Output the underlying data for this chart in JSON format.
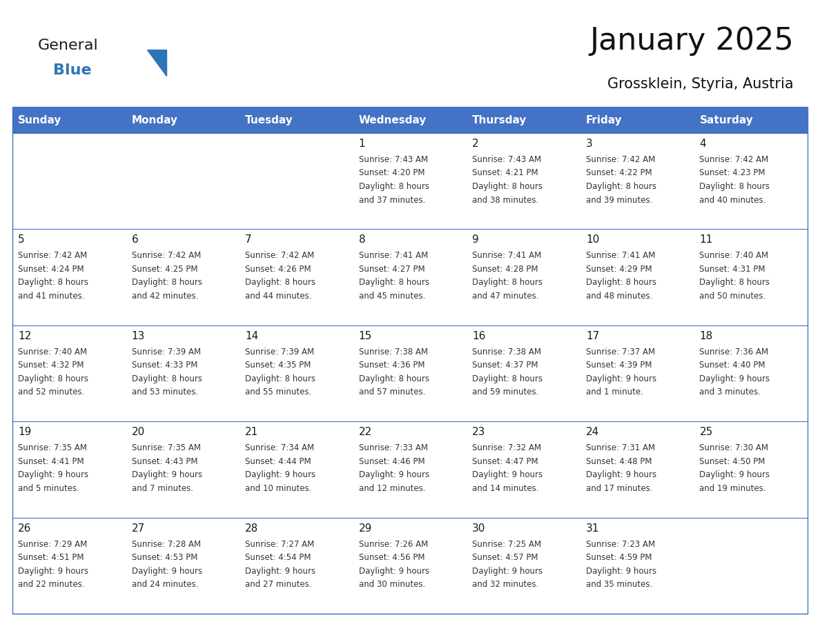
{
  "title": "January 2025",
  "subtitle": "Grossklein, Styria, Austria",
  "header_color": "#4472C4",
  "header_text_color": "#FFFFFF",
  "border_color": "#4472C4",
  "cell_line_color": "#4472C4",
  "text_color": "#333333",
  "day_number_color": "#1a1a1a",
  "logo_general_color": "#1a1a1a",
  "logo_blue_color": "#2E75B6",
  "logo_triangle_color": "#2E75B6",
  "days_of_week": [
    "Sunday",
    "Monday",
    "Tuesday",
    "Wednesday",
    "Thursday",
    "Friday",
    "Saturday"
  ],
  "weeks": [
    [
      {
        "day": "",
        "info": ""
      },
      {
        "day": "",
        "info": ""
      },
      {
        "day": "",
        "info": ""
      },
      {
        "day": "1",
        "info": "Sunrise: 7:43 AM\nSunset: 4:20 PM\nDaylight: 8 hours\nand 37 minutes."
      },
      {
        "day": "2",
        "info": "Sunrise: 7:43 AM\nSunset: 4:21 PM\nDaylight: 8 hours\nand 38 minutes."
      },
      {
        "day": "3",
        "info": "Sunrise: 7:42 AM\nSunset: 4:22 PM\nDaylight: 8 hours\nand 39 minutes."
      },
      {
        "day": "4",
        "info": "Sunrise: 7:42 AM\nSunset: 4:23 PM\nDaylight: 8 hours\nand 40 minutes."
      }
    ],
    [
      {
        "day": "5",
        "info": "Sunrise: 7:42 AM\nSunset: 4:24 PM\nDaylight: 8 hours\nand 41 minutes."
      },
      {
        "day": "6",
        "info": "Sunrise: 7:42 AM\nSunset: 4:25 PM\nDaylight: 8 hours\nand 42 minutes."
      },
      {
        "day": "7",
        "info": "Sunrise: 7:42 AM\nSunset: 4:26 PM\nDaylight: 8 hours\nand 44 minutes."
      },
      {
        "day": "8",
        "info": "Sunrise: 7:41 AM\nSunset: 4:27 PM\nDaylight: 8 hours\nand 45 minutes."
      },
      {
        "day": "9",
        "info": "Sunrise: 7:41 AM\nSunset: 4:28 PM\nDaylight: 8 hours\nand 47 minutes."
      },
      {
        "day": "10",
        "info": "Sunrise: 7:41 AM\nSunset: 4:29 PM\nDaylight: 8 hours\nand 48 minutes."
      },
      {
        "day": "11",
        "info": "Sunrise: 7:40 AM\nSunset: 4:31 PM\nDaylight: 8 hours\nand 50 minutes."
      }
    ],
    [
      {
        "day": "12",
        "info": "Sunrise: 7:40 AM\nSunset: 4:32 PM\nDaylight: 8 hours\nand 52 minutes."
      },
      {
        "day": "13",
        "info": "Sunrise: 7:39 AM\nSunset: 4:33 PM\nDaylight: 8 hours\nand 53 minutes."
      },
      {
        "day": "14",
        "info": "Sunrise: 7:39 AM\nSunset: 4:35 PM\nDaylight: 8 hours\nand 55 minutes."
      },
      {
        "day": "15",
        "info": "Sunrise: 7:38 AM\nSunset: 4:36 PM\nDaylight: 8 hours\nand 57 minutes."
      },
      {
        "day": "16",
        "info": "Sunrise: 7:38 AM\nSunset: 4:37 PM\nDaylight: 8 hours\nand 59 minutes."
      },
      {
        "day": "17",
        "info": "Sunrise: 7:37 AM\nSunset: 4:39 PM\nDaylight: 9 hours\nand 1 minute."
      },
      {
        "day": "18",
        "info": "Sunrise: 7:36 AM\nSunset: 4:40 PM\nDaylight: 9 hours\nand 3 minutes."
      }
    ],
    [
      {
        "day": "19",
        "info": "Sunrise: 7:35 AM\nSunset: 4:41 PM\nDaylight: 9 hours\nand 5 minutes."
      },
      {
        "day": "20",
        "info": "Sunrise: 7:35 AM\nSunset: 4:43 PM\nDaylight: 9 hours\nand 7 minutes."
      },
      {
        "day": "21",
        "info": "Sunrise: 7:34 AM\nSunset: 4:44 PM\nDaylight: 9 hours\nand 10 minutes."
      },
      {
        "day": "22",
        "info": "Sunrise: 7:33 AM\nSunset: 4:46 PM\nDaylight: 9 hours\nand 12 minutes."
      },
      {
        "day": "23",
        "info": "Sunrise: 7:32 AM\nSunset: 4:47 PM\nDaylight: 9 hours\nand 14 minutes."
      },
      {
        "day": "24",
        "info": "Sunrise: 7:31 AM\nSunset: 4:48 PM\nDaylight: 9 hours\nand 17 minutes."
      },
      {
        "day": "25",
        "info": "Sunrise: 7:30 AM\nSunset: 4:50 PM\nDaylight: 9 hours\nand 19 minutes."
      }
    ],
    [
      {
        "day": "26",
        "info": "Sunrise: 7:29 AM\nSunset: 4:51 PM\nDaylight: 9 hours\nand 22 minutes."
      },
      {
        "day": "27",
        "info": "Sunrise: 7:28 AM\nSunset: 4:53 PM\nDaylight: 9 hours\nand 24 minutes."
      },
      {
        "day": "28",
        "info": "Sunrise: 7:27 AM\nSunset: 4:54 PM\nDaylight: 9 hours\nand 27 minutes."
      },
      {
        "day": "29",
        "info": "Sunrise: 7:26 AM\nSunset: 4:56 PM\nDaylight: 9 hours\nand 30 minutes."
      },
      {
        "day": "30",
        "info": "Sunrise: 7:25 AM\nSunset: 4:57 PM\nDaylight: 9 hours\nand 32 minutes."
      },
      {
        "day": "31",
        "info": "Sunrise: 7:23 AM\nSunset: 4:59 PM\nDaylight: 9 hours\nand 35 minutes."
      },
      {
        "day": "",
        "info": ""
      }
    ]
  ],
  "fig_width": 11.88,
  "fig_height": 9.18,
  "dpi": 100
}
